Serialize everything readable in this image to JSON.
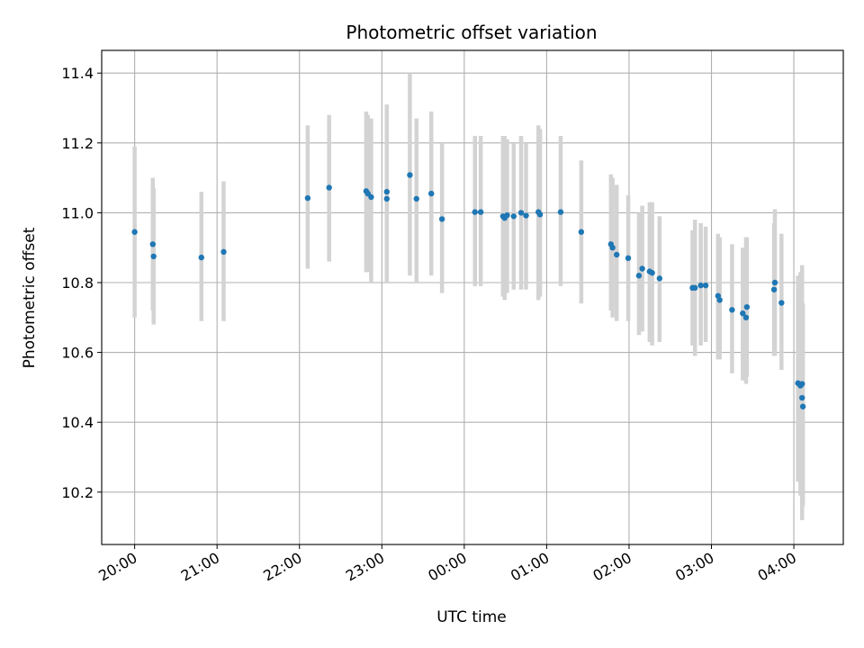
{
  "chart_data": {
    "type": "scatter",
    "title": "Photometric offset variation",
    "xlabel": "UTC time",
    "ylabel": "Photometric offset",
    "x_unit": "hours since 00:00 UTC",
    "xlim": [
      -4.4,
      4.6
    ],
    "ylim": [
      10.05,
      11.465
    ],
    "x_ticks": [
      {
        "value": -4,
        "label": "20:00"
      },
      {
        "value": -3,
        "label": "21:00"
      },
      {
        "value": -2,
        "label": "22:00"
      },
      {
        "value": -1,
        "label": "23:00"
      },
      {
        "value": 0,
        "label": "00:00"
      },
      {
        "value": 1,
        "label": "01:00"
      },
      {
        "value": 2,
        "label": "02:00"
      },
      {
        "value": 3,
        "label": "03:00"
      },
      {
        "value": 4,
        "label": "04:00"
      }
    ],
    "y_ticks": [
      {
        "value": 10.2,
        "label": "10.2"
      },
      {
        "value": 10.4,
        "label": "10.4"
      },
      {
        "value": 10.6,
        "label": "10.6"
      },
      {
        "value": 10.8,
        "label": "10.8"
      },
      {
        "value": 11.0,
        "label": "11.0"
      },
      {
        "value": 11.2,
        "label": "11.2"
      },
      {
        "value": 11.4,
        "label": "11.4"
      }
    ],
    "grid": true,
    "colors": {
      "marker": "#1f77b4",
      "errorbar": "#d3d3d3",
      "grid": "#b0b0b0",
      "axes": "#000000"
    },
    "series": [
      {
        "points": [
          {
            "x": -4.0,
            "y": 10.945,
            "lo": 10.7,
            "hi": 11.19
          },
          {
            "x": -3.78,
            "y": 10.91,
            "lo": 10.72,
            "hi": 11.1
          },
          {
            "x": -3.77,
            "y": 10.875,
            "lo": 10.68,
            "hi": 11.07
          },
          {
            "x": -3.19,
            "y": 10.872,
            "lo": 10.69,
            "hi": 11.06
          },
          {
            "x": -2.92,
            "y": 10.888,
            "lo": 10.69,
            "hi": 11.09
          },
          {
            "x": -1.9,
            "y": 11.042,
            "lo": 10.84,
            "hi": 11.25
          },
          {
            "x": -1.64,
            "y": 11.072,
            "lo": 10.86,
            "hi": 11.28
          },
          {
            "x": -1.19,
            "y": 11.062,
            "lo": 10.83,
            "hi": 11.29
          },
          {
            "x": -1.17,
            "y": 11.055,
            "lo": 10.83,
            "hi": 11.28
          },
          {
            "x": -1.13,
            "y": 11.045,
            "lo": 10.8,
            "hi": 11.27
          },
          {
            "x": -0.94,
            "y": 11.06,
            "lo": 10.8,
            "hi": 11.31
          },
          {
            "x": -0.94,
            "y": 11.04,
            "lo": 10.8,
            "hi": 11.29
          },
          {
            "x": -0.66,
            "y": 11.108,
            "lo": 10.82,
            "hi": 11.4
          },
          {
            "x": -0.58,
            "y": 11.04,
            "lo": 10.8,
            "hi": 11.27
          },
          {
            "x": -0.4,
            "y": 11.055,
            "lo": 10.82,
            "hi": 11.29
          },
          {
            "x": -0.27,
            "y": 10.982,
            "lo": 10.77,
            "hi": 11.2
          },
          {
            "x": 0.13,
            "y": 11.002,
            "lo": 10.79,
            "hi": 11.22
          },
          {
            "x": 0.2,
            "y": 11.002,
            "lo": 10.79,
            "hi": 11.22
          },
          {
            "x": 0.47,
            "y": 10.99,
            "lo": 10.76,
            "hi": 11.22
          },
          {
            "x": 0.49,
            "y": 10.985,
            "lo": 10.75,
            "hi": 11.22
          },
          {
            "x": 0.52,
            "y": 10.993,
            "lo": 10.77,
            "hi": 11.21
          },
          {
            "x": 0.6,
            "y": 10.99,
            "lo": 10.78,
            "hi": 11.2
          },
          {
            "x": 0.69,
            "y": 11.0,
            "lo": 10.78,
            "hi": 11.22
          },
          {
            "x": 0.75,
            "y": 10.992,
            "lo": 10.78,
            "hi": 11.2
          },
          {
            "x": 0.9,
            "y": 11.002,
            "lo": 10.75,
            "hi": 11.25
          },
          {
            "x": 0.92,
            "y": 10.995,
            "lo": 10.76,
            "hi": 11.24
          },
          {
            "x": 1.17,
            "y": 11.002,
            "lo": 10.79,
            "hi": 11.22
          },
          {
            "x": 1.42,
            "y": 10.945,
            "lo": 10.74,
            "hi": 11.15
          },
          {
            "x": 1.78,
            "y": 10.91,
            "lo": 10.72,
            "hi": 11.11
          },
          {
            "x": 1.8,
            "y": 10.9,
            "lo": 10.7,
            "hi": 11.1
          },
          {
            "x": 1.85,
            "y": 10.88,
            "lo": 10.69,
            "hi": 11.08
          },
          {
            "x": 1.99,
            "y": 10.87,
            "lo": 10.69,
            "hi": 11.05
          },
          {
            "x": 2.12,
            "y": 10.82,
            "lo": 10.65,
            "hi": 11.0
          },
          {
            "x": 2.16,
            "y": 10.84,
            "lo": 10.66,
            "hi": 11.02
          },
          {
            "x": 2.25,
            "y": 10.832,
            "lo": 10.63,
            "hi": 11.03
          },
          {
            "x": 2.28,
            "y": 10.828,
            "lo": 10.62,
            "hi": 11.03
          },
          {
            "x": 2.37,
            "y": 10.812,
            "lo": 10.63,
            "hi": 10.99
          },
          {
            "x": 2.77,
            "y": 10.785,
            "lo": 10.62,
            "hi": 10.95
          },
          {
            "x": 2.8,
            "y": 10.785,
            "lo": 10.59,
            "hi": 10.98
          },
          {
            "x": 2.87,
            "y": 10.792,
            "lo": 10.62,
            "hi": 10.97
          },
          {
            "x": 2.93,
            "y": 10.792,
            "lo": 10.63,
            "hi": 10.96
          },
          {
            "x": 3.08,
            "y": 10.762,
            "lo": 10.58,
            "hi": 10.94
          },
          {
            "x": 3.1,
            "y": 10.75,
            "lo": 10.58,
            "hi": 10.93
          },
          {
            "x": 3.25,
            "y": 10.722,
            "lo": 10.54,
            "hi": 10.91
          },
          {
            "x": 3.38,
            "y": 10.712,
            "lo": 10.52,
            "hi": 10.9
          },
          {
            "x": 3.42,
            "y": 10.7,
            "lo": 10.51,
            "hi": 10.93
          },
          {
            "x": 3.43,
            "y": 10.73,
            "lo": 10.53,
            "hi": 10.93
          },
          {
            "x": 3.76,
            "y": 10.78,
            "lo": 10.59,
            "hi": 10.97
          },
          {
            "x": 3.77,
            "y": 10.8,
            "lo": 10.59,
            "hi": 11.01
          },
          {
            "x": 3.85,
            "y": 10.742,
            "lo": 10.55,
            "hi": 10.94
          },
          {
            "x": 4.05,
            "y": 10.512,
            "lo": 10.23,
            "hi": 10.82
          },
          {
            "x": 4.08,
            "y": 10.505,
            "lo": 10.19,
            "hi": 10.83
          },
          {
            "x": 4.1,
            "y": 10.51,
            "lo": 10.17,
            "hi": 10.85
          },
          {
            "x": 4.1,
            "y": 10.47,
            "lo": 10.12,
            "hi": 10.82
          },
          {
            "x": 4.11,
            "y": 10.445,
            "lo": 10.16,
            "hi": 10.74
          }
        ]
      }
    ]
  }
}
